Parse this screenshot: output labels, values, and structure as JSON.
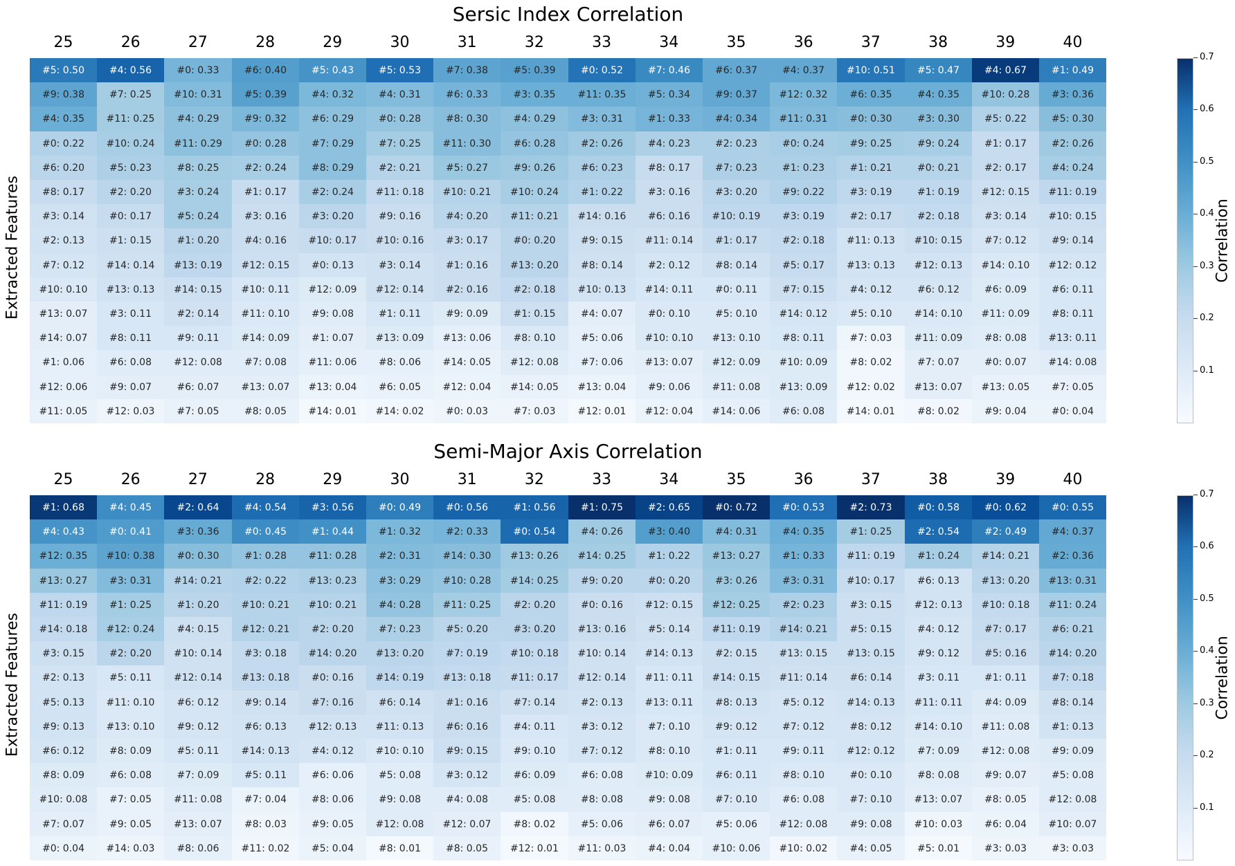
{
  "chart_data": [
    {
      "type": "heatmap",
      "title": "Sersic Index Correlation",
      "ylabel": "Extracted Features",
      "colorbar_label": "Correlation",
      "colorbar_ticks": [
        "0.1",
        "0.2",
        "0.3",
        "0.4",
        "0.5",
        "0.6",
        "0.7"
      ],
      "value_range": [
        0.0,
        0.7
      ],
      "colormap": "Blues",
      "columns": [
        "25",
        "26",
        "27",
        "28",
        "29",
        "30",
        "31",
        "32",
        "33",
        "34",
        "35",
        "36",
        "37",
        "38",
        "39",
        "40"
      ],
      "cells": [
        [
          "#5: 0.50",
          "#4: 0.56",
          "#0: 0.33",
          "#6: 0.40",
          "#5: 0.43",
          "#5: 0.53",
          "#7: 0.38",
          "#5: 0.39",
          "#0: 0.52",
          "#7: 0.46",
          "#6: 0.37",
          "#4: 0.37",
          "#10: 0.51",
          "#5: 0.47",
          "#4: 0.67",
          "#1: 0.49"
        ],
        [
          "#9: 0.38",
          "#7: 0.25",
          "#10: 0.31",
          "#5: 0.39",
          "#4: 0.32",
          "#4: 0.31",
          "#6: 0.33",
          "#3: 0.35",
          "#11: 0.35",
          "#5: 0.34",
          "#9: 0.37",
          "#12: 0.32",
          "#6: 0.35",
          "#4: 0.35",
          "#10: 0.28",
          "#3: 0.36"
        ],
        [
          "#4: 0.35",
          "#11: 0.25",
          "#4: 0.29",
          "#9: 0.32",
          "#6: 0.29",
          "#0: 0.28",
          "#8: 0.30",
          "#4: 0.29",
          "#3: 0.31",
          "#1: 0.33",
          "#4: 0.34",
          "#11: 0.31",
          "#0: 0.30",
          "#3: 0.30",
          "#5: 0.22",
          "#5: 0.30"
        ],
        [
          "#0: 0.22",
          "#10: 0.24",
          "#11: 0.29",
          "#0: 0.28",
          "#7: 0.29",
          "#7: 0.25",
          "#11: 0.30",
          "#6: 0.28",
          "#2: 0.26",
          "#4: 0.23",
          "#2: 0.23",
          "#0: 0.24",
          "#9: 0.25",
          "#9: 0.24",
          "#1: 0.17",
          "#2: 0.26"
        ],
        [
          "#6: 0.20",
          "#5: 0.23",
          "#8: 0.25",
          "#2: 0.24",
          "#8: 0.29",
          "#2: 0.21",
          "#5: 0.27",
          "#9: 0.26",
          "#6: 0.23",
          "#8: 0.17",
          "#7: 0.23",
          "#1: 0.23",
          "#1: 0.21",
          "#0: 0.21",
          "#2: 0.17",
          "#4: 0.24"
        ],
        [
          "#8: 0.17",
          "#2: 0.20",
          "#3: 0.24",
          "#1: 0.17",
          "#2: 0.24",
          "#11: 0.18",
          "#10: 0.21",
          "#10: 0.24",
          "#1: 0.22",
          "#3: 0.16",
          "#3: 0.20",
          "#9: 0.22",
          "#3: 0.19",
          "#1: 0.19",
          "#12: 0.15",
          "#11: 0.19"
        ],
        [
          "#3: 0.14",
          "#0: 0.17",
          "#5: 0.24",
          "#3: 0.16",
          "#3: 0.20",
          "#9: 0.16",
          "#4: 0.20",
          "#11: 0.21",
          "#14: 0.16",
          "#6: 0.16",
          "#10: 0.19",
          "#3: 0.19",
          "#2: 0.17",
          "#2: 0.18",
          "#3: 0.14",
          "#10: 0.15"
        ],
        [
          "#2: 0.13",
          "#1: 0.15",
          "#1: 0.20",
          "#4: 0.16",
          "#10: 0.17",
          "#10: 0.16",
          "#3: 0.17",
          "#0: 0.20",
          "#9: 0.15",
          "#11: 0.14",
          "#1: 0.17",
          "#2: 0.18",
          "#11: 0.13",
          "#10: 0.15",
          "#7: 0.12",
          "#9: 0.14"
        ],
        [
          "#7: 0.12",
          "#14: 0.14",
          "#13: 0.19",
          "#12: 0.15",
          "#0: 0.13",
          "#3: 0.14",
          "#1: 0.16",
          "#13: 0.20",
          "#8: 0.14",
          "#2: 0.12",
          "#8: 0.14",
          "#5: 0.17",
          "#13: 0.13",
          "#12: 0.13",
          "#14: 0.10",
          "#12: 0.12"
        ],
        [
          "#10: 0.10",
          "#13: 0.13",
          "#14: 0.15",
          "#10: 0.11",
          "#12: 0.09",
          "#12: 0.14",
          "#2: 0.16",
          "#2: 0.18",
          "#10: 0.13",
          "#14: 0.11",
          "#0: 0.11",
          "#7: 0.15",
          "#4: 0.12",
          "#6: 0.12",
          "#6: 0.09",
          "#6: 0.11"
        ],
        [
          "#13: 0.07",
          "#3: 0.11",
          "#2: 0.14",
          "#11: 0.10",
          "#9: 0.08",
          "#1: 0.11",
          "#9: 0.09",
          "#1: 0.15",
          "#4: 0.07",
          "#0: 0.10",
          "#5: 0.10",
          "#14: 0.12",
          "#5: 0.10",
          "#14: 0.10",
          "#11: 0.09",
          "#8: 0.11"
        ],
        [
          "#14: 0.07",
          "#8: 0.11",
          "#9: 0.11",
          "#14: 0.09",
          "#1: 0.07",
          "#13: 0.09",
          "#13: 0.06",
          "#8: 0.10",
          "#5: 0.06",
          "#10: 0.10",
          "#13: 0.10",
          "#8: 0.11",
          "#7: 0.03",
          "#11: 0.09",
          "#8: 0.08",
          "#13: 0.11"
        ],
        [
          "#1: 0.06",
          "#6: 0.08",
          "#12: 0.08",
          "#7: 0.08",
          "#11: 0.06",
          "#8: 0.06",
          "#14: 0.05",
          "#12: 0.08",
          "#7: 0.06",
          "#13: 0.07",
          "#12: 0.09",
          "#10: 0.09",
          "#8: 0.02",
          "#7: 0.07",
          "#0: 0.07",
          "#14: 0.08"
        ],
        [
          "#12: 0.06",
          "#9: 0.07",
          "#6: 0.07",
          "#13: 0.07",
          "#13: 0.04",
          "#6: 0.05",
          "#12: 0.04",
          "#14: 0.05",
          "#13: 0.04",
          "#9: 0.06",
          "#11: 0.08",
          "#13: 0.09",
          "#12: 0.02",
          "#13: 0.07",
          "#13: 0.05",
          "#7: 0.05"
        ],
        [
          "#11: 0.05",
          "#12: 0.03",
          "#7: 0.05",
          "#8: 0.05",
          "#14: 0.01",
          "#14: 0.02",
          "#0: 0.03",
          "#7: 0.03",
          "#12: 0.01",
          "#12: 0.04",
          "#14: 0.06",
          "#6: 0.08",
          "#14: 0.01",
          "#8: 0.02",
          "#9: 0.04",
          "#0: 0.04"
        ]
      ]
    },
    {
      "type": "heatmap",
      "title": "Semi-Major Axis Correlation",
      "ylabel": "Extracted Features",
      "colorbar_label": "Correlation",
      "colorbar_ticks": [
        "0.1",
        "0.2",
        "0.3",
        "0.4",
        "0.5",
        "0.6",
        "0.7"
      ],
      "value_range": [
        0.0,
        0.7
      ],
      "colormap": "Blues",
      "columns": [
        "25",
        "26",
        "27",
        "28",
        "29",
        "30",
        "31",
        "32",
        "33",
        "34",
        "35",
        "36",
        "37",
        "38",
        "39",
        "40"
      ],
      "cells": [
        [
          "#1: 0.68",
          "#4: 0.45",
          "#2: 0.64",
          "#4: 0.54",
          "#3: 0.56",
          "#0: 0.49",
          "#0: 0.56",
          "#1: 0.56",
          "#1: 0.75",
          "#2: 0.65",
          "#0: 0.72",
          "#0: 0.53",
          "#2: 0.73",
          "#0: 0.58",
          "#0: 0.62",
          "#0: 0.55"
        ],
        [
          "#4: 0.43",
          "#0: 0.41",
          "#3: 0.36",
          "#0: 0.45",
          "#1: 0.44",
          "#1: 0.32",
          "#2: 0.33",
          "#0: 0.54",
          "#4: 0.26",
          "#3: 0.40",
          "#4: 0.31",
          "#4: 0.35",
          "#1: 0.25",
          "#2: 0.54",
          "#2: 0.49",
          "#4: 0.37"
        ],
        [
          "#12: 0.35",
          "#10: 0.38",
          "#0: 0.30",
          "#1: 0.28",
          "#11: 0.28",
          "#2: 0.31",
          "#14: 0.30",
          "#13: 0.26",
          "#14: 0.25",
          "#1: 0.22",
          "#13: 0.27",
          "#1: 0.33",
          "#11: 0.19",
          "#1: 0.24",
          "#14: 0.21",
          "#2: 0.36"
        ],
        [
          "#13: 0.27",
          "#3: 0.31",
          "#14: 0.21",
          "#2: 0.22",
          "#13: 0.23",
          "#3: 0.29",
          "#10: 0.28",
          "#14: 0.25",
          "#9: 0.20",
          "#0: 0.20",
          "#3: 0.26",
          "#3: 0.31",
          "#10: 0.17",
          "#6: 0.13",
          "#13: 0.20",
          "#13: 0.31"
        ],
        [
          "#11: 0.19",
          "#1: 0.25",
          "#1: 0.20",
          "#10: 0.21",
          "#10: 0.21",
          "#4: 0.28",
          "#11: 0.25",
          "#2: 0.20",
          "#0: 0.16",
          "#12: 0.15",
          "#12: 0.25",
          "#2: 0.23",
          "#3: 0.15",
          "#12: 0.13",
          "#10: 0.18",
          "#11: 0.24"
        ],
        [
          "#14: 0.18",
          "#12: 0.24",
          "#4: 0.15",
          "#12: 0.21",
          "#2: 0.20",
          "#7: 0.23",
          "#5: 0.20",
          "#3: 0.20",
          "#13: 0.16",
          "#5: 0.14",
          "#11: 0.19",
          "#14: 0.21",
          "#5: 0.15",
          "#4: 0.12",
          "#7: 0.17",
          "#6: 0.21"
        ],
        [
          "#3: 0.15",
          "#2: 0.20",
          "#10: 0.14",
          "#3: 0.18",
          "#14: 0.20",
          "#13: 0.20",
          "#7: 0.19",
          "#10: 0.18",
          "#10: 0.14",
          "#14: 0.13",
          "#2: 0.15",
          "#13: 0.15",
          "#13: 0.15",
          "#9: 0.12",
          "#5: 0.16",
          "#14: 0.20"
        ],
        [
          "#2: 0.13",
          "#5: 0.11",
          "#12: 0.14",
          "#13: 0.18",
          "#0: 0.16",
          "#14: 0.19",
          "#13: 0.18",
          "#11: 0.17",
          "#12: 0.14",
          "#11: 0.11",
          "#14: 0.15",
          "#11: 0.14",
          "#6: 0.14",
          "#3: 0.11",
          "#1: 0.11",
          "#7: 0.18"
        ],
        [
          "#5: 0.13",
          "#11: 0.10",
          "#6: 0.12",
          "#9: 0.14",
          "#7: 0.16",
          "#6: 0.14",
          "#1: 0.16",
          "#7: 0.14",
          "#2: 0.13",
          "#13: 0.11",
          "#8: 0.13",
          "#5: 0.12",
          "#14: 0.13",
          "#11: 0.11",
          "#4: 0.09",
          "#8: 0.14"
        ],
        [
          "#9: 0.13",
          "#13: 0.10",
          "#9: 0.12",
          "#6: 0.13",
          "#12: 0.13",
          "#11: 0.13",
          "#6: 0.16",
          "#4: 0.11",
          "#3: 0.12",
          "#7: 0.10",
          "#9: 0.12",
          "#7: 0.12",
          "#8: 0.12",
          "#14: 0.10",
          "#11: 0.08",
          "#1: 0.13"
        ],
        [
          "#6: 0.12",
          "#8: 0.09",
          "#5: 0.11",
          "#14: 0.13",
          "#4: 0.12",
          "#10: 0.10",
          "#9: 0.15",
          "#9: 0.10",
          "#7: 0.12",
          "#8: 0.10",
          "#1: 0.11",
          "#9: 0.11",
          "#12: 0.12",
          "#7: 0.09",
          "#12: 0.08",
          "#9: 0.09"
        ],
        [
          "#8: 0.09",
          "#6: 0.08",
          "#7: 0.09",
          "#5: 0.11",
          "#6: 0.06",
          "#5: 0.08",
          "#3: 0.12",
          "#6: 0.09",
          "#6: 0.08",
          "#10: 0.09",
          "#6: 0.11",
          "#8: 0.10",
          "#0: 0.10",
          "#8: 0.08",
          "#9: 0.07",
          "#5: 0.08"
        ],
        [
          "#10: 0.08",
          "#7: 0.05",
          "#11: 0.08",
          "#7: 0.04",
          "#8: 0.06",
          "#9: 0.08",
          "#4: 0.08",
          "#5: 0.08",
          "#8: 0.08",
          "#9: 0.08",
          "#7: 0.10",
          "#6: 0.08",
          "#7: 0.10",
          "#13: 0.07",
          "#8: 0.05",
          "#12: 0.08"
        ],
        [
          "#7: 0.07",
          "#9: 0.05",
          "#13: 0.07",
          "#8: 0.03",
          "#9: 0.05",
          "#12: 0.08",
          "#12: 0.07",
          "#8: 0.02",
          "#5: 0.06",
          "#6: 0.07",
          "#5: 0.06",
          "#12: 0.08",
          "#9: 0.08",
          "#10: 0.03",
          "#6: 0.04",
          "#10: 0.07"
        ],
        [
          "#0: 0.04",
          "#14: 0.03",
          "#8: 0.06",
          "#11: 0.02",
          "#5: 0.04",
          "#8: 0.01",
          "#8: 0.05",
          "#12: 0.01",
          "#11: 0.03",
          "#4: 0.04",
          "#10: 0.06",
          "#10: 0.02",
          "#4: 0.05",
          "#5: 0.01",
          "#3: 0.03",
          "#3: 0.03"
        ]
      ]
    }
  ]
}
